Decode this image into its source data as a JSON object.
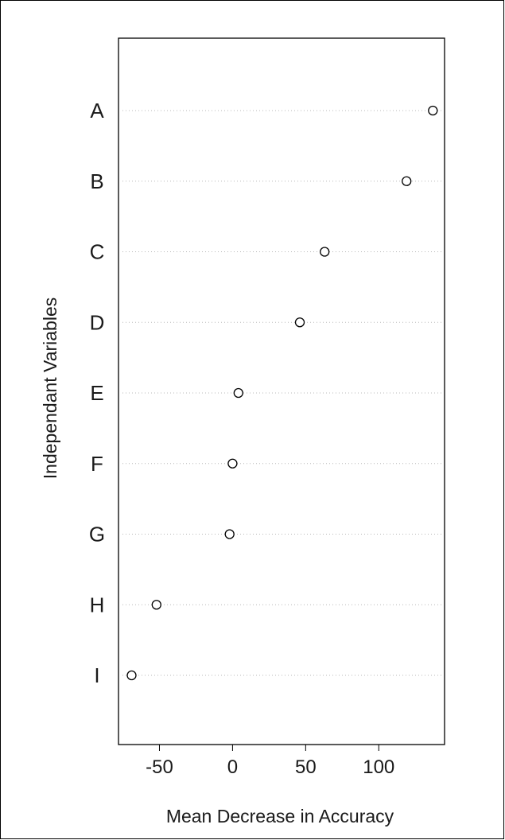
{
  "chart_data": {
    "type": "scatter",
    "subtype": "dotchart",
    "categories": [
      "A",
      "B",
      "C",
      "D",
      "E",
      "F",
      "G",
      "H",
      "I"
    ],
    "values": [
      137,
      119,
      63,
      46,
      4,
      0,
      -2,
      -52,
      -69
    ],
    "xlabel": "Mean Decrease in Accuracy",
    "ylabel": "Independant Variables",
    "xlim": [
      -78,
      145
    ],
    "xticks": [
      -50,
      0,
      50,
      100
    ],
    "xtick_labels": [
      "-50",
      "0",
      "50",
      "100"
    ],
    "grid": "dotted horizontal lines per category",
    "marker": "open circle",
    "colors": {
      "marker": "#000000",
      "grid": "#b8b8b8"
    }
  }
}
